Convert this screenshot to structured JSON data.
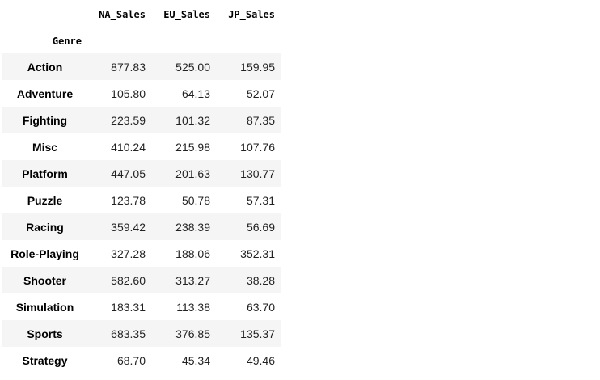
{
  "table": {
    "columns": [
      "NA_Sales",
      "EU_Sales",
      "JP_Sales"
    ],
    "index_name": "Genre",
    "rows": [
      [
        "Action",
        "877.83",
        "525.00",
        "159.95"
      ],
      [
        "Adventure",
        "105.80",
        "64.13",
        "52.07"
      ],
      [
        "Fighting",
        "223.59",
        "101.32",
        "87.35"
      ],
      [
        "Misc",
        "410.24",
        "215.98",
        "107.76"
      ],
      [
        "Platform",
        "447.05",
        "201.63",
        "130.77"
      ],
      [
        "Puzzle",
        "123.78",
        "50.78",
        "57.31"
      ],
      [
        "Racing",
        "359.42",
        "238.39",
        "56.69"
      ],
      [
        "Role-Playing",
        "327.28",
        "188.06",
        "352.31"
      ],
      [
        "Shooter",
        "582.60",
        "313.27",
        "38.28"
      ],
      [
        "Simulation",
        "183.31",
        "113.38",
        "63.70"
      ],
      [
        "Sports",
        "683.35",
        "376.85",
        "135.37"
      ],
      [
        "Strategy",
        "68.70",
        "45.34",
        "49.46"
      ]
    ]
  }
}
